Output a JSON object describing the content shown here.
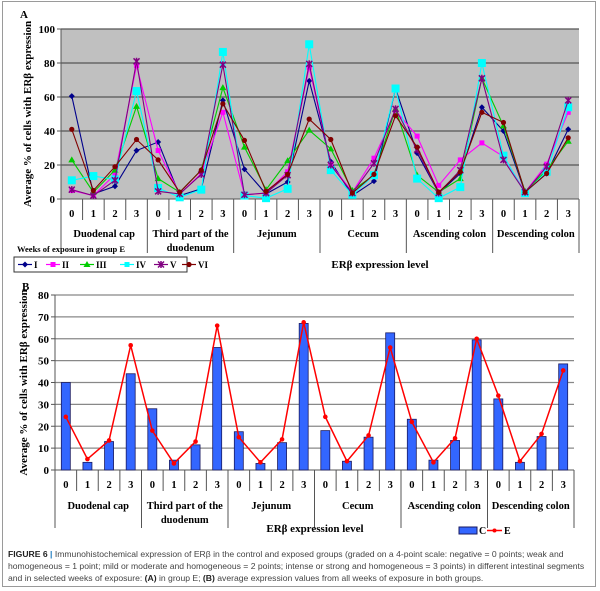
{
  "chart_data": [
    {
      "panel_label": "A",
      "type": "line",
      "ylabel": "Average % of cells with ERβ expression",
      "xlabel": "ERβ expression level",
      "ylim": [
        0,
        100
      ],
      "yticks": [
        "0",
        "20",
        "40",
        "60",
        "80",
        "100"
      ],
      "grid": true,
      "background": "#c0c0c0",
      "levels": [
        "0",
        "1",
        "2",
        "3"
      ],
      "groups": [
        "Duodenal cap",
        [
          "Third part of the",
          "duodenum"
        ],
        "Jejunum",
        "Cecum",
        "Ascending colon",
        "Descending colon"
      ],
      "legend_title": "Weeks of exposure in group E",
      "legend_placement": "bottom-left",
      "series": [
        {
          "name": "I",
          "color": "#00008b",
          "marker": "diamond",
          "values": [
            60.5,
            3,
            7.5,
            28.5,
            33.5,
            2,
            6,
            58,
            17.5,
            3,
            10,
            69.5,
            22,
            2,
            10.5,
            65,
            27,
            3.5,
            15,
            54,
            40,
            4,
            15,
            41
          ]
        },
        {
          "name": "II",
          "color": "#ff00ff",
          "marker": "square",
          "values": [
            5,
            2,
            14.5,
            78.5,
            28.5,
            3,
            15,
            51,
            2.5,
            3.5,
            16,
            77.5,
            20.5,
            4,
            24,
            52,
            37,
            8,
            23,
            33,
            25,
            4,
            20.5,
            51
          ]
        },
        {
          "name": "III",
          "color": "#00cc00",
          "marker": "triangle",
          "values": [
            23,
            4,
            17,
            54.5,
            12,
            4,
            17,
            65.5,
            30.5,
            5.5,
            22.5,
            40.5,
            29.5,
            5,
            14,
            53,
            14,
            4,
            12,
            71,
            43,
            4.5,
            17,
            34
          ]
        },
        {
          "name": "IV",
          "color": "#00ffff",
          "marker": "bigsquare",
          "values": [
            11,
            13.5,
            11.5,
            63.5,
            6.5,
            1,
            5.5,
            86.5,
            2,
            0.5,
            6,
            91,
            17,
            2.5,
            14,
            65,
            12,
            0.5,
            7,
            80,
            25.5,
            3.5,
            16,
            54
          ]
        },
        {
          "name": "V",
          "color": "#800080",
          "marker": "star",
          "values": [
            5.5,
            2,
            11,
            81,
            4.5,
            3,
            14.5,
            79,
            2.5,
            3.5,
            14,
            79.5,
            20,
            3.5,
            21,
            53,
            29,
            3.5,
            17,
            71,
            23,
            4,
            19,
            58
          ]
        },
        {
          "name": "VI",
          "color": "#800000",
          "marker": "circle",
          "values": [
            41,
            5,
            19,
            35,
            23,
            4,
            17,
            56,
            34.5,
            4.5,
            14.5,
            47,
            35,
            3.5,
            14.5,
            49,
            30.5,
            4,
            16,
            51,
            45,
            4,
            15,
            36
          ]
        }
      ]
    },
    {
      "panel_label": "B",
      "type": "bar",
      "ylabel": "Average % of cells with ERβ expression",
      "xlabel": "ERβ expression level",
      "ylim": [
        0,
        80
      ],
      "yticks": [
        "0",
        "10",
        "20",
        "30",
        "40",
        "50",
        "60",
        "70",
        "80"
      ],
      "grid": true,
      "levels": [
        "0",
        "1",
        "2",
        "3"
      ],
      "groups": [
        "Duodenal cap",
        [
          "Third part of the",
          "duodenum"
        ],
        "Jejunum",
        "Cecum",
        "Ascending colon",
        "Descending colon"
      ],
      "legend_placement": "bottom-right",
      "series": [
        {
          "name": "C",
          "type": "bar",
          "color": "#3366ff",
          "values": [
            40,
            3.5,
            13,
            44,
            28,
            4.5,
            11.5,
            56,
            17.5,
            3,
            12.5,
            67,
            18,
            4,
            15,
            62.7,
            23.2,
            4.5,
            13.5,
            59.5,
            32.5,
            3.5,
            15.3,
            48.5
          ]
        },
        {
          "name": "E",
          "type": "line",
          "color": "#ff0000",
          "values": [
            24.3,
            5,
            13.5,
            57,
            18,
            3,
            13,
            66,
            15,
            3.5,
            14,
            67.5,
            24.3,
            4,
            15.8,
            56,
            22,
            3.5,
            14.5,
            60,
            34,
            4,
            16.5,
            45.5
          ]
        }
      ]
    }
  ],
  "caption": {
    "figure_label": "FIGURE 6",
    "text_1": "Immunohistochemical expression of ERβ in the control and exposed groups (graded on a 4-point scale: negative = 0 points; weak and homogeneous = 1 point; mild or moderate and homogeneous = 2 points; intense or strong and homogeneous = 3 points) in different intestinal segments and in selected weeks of exposure: ",
    "a_label": "(A)",
    "text_2": " in group E; ",
    "b_label": "(B)",
    "text_3": " average expression values from all weeks of exposure in both groups."
  }
}
